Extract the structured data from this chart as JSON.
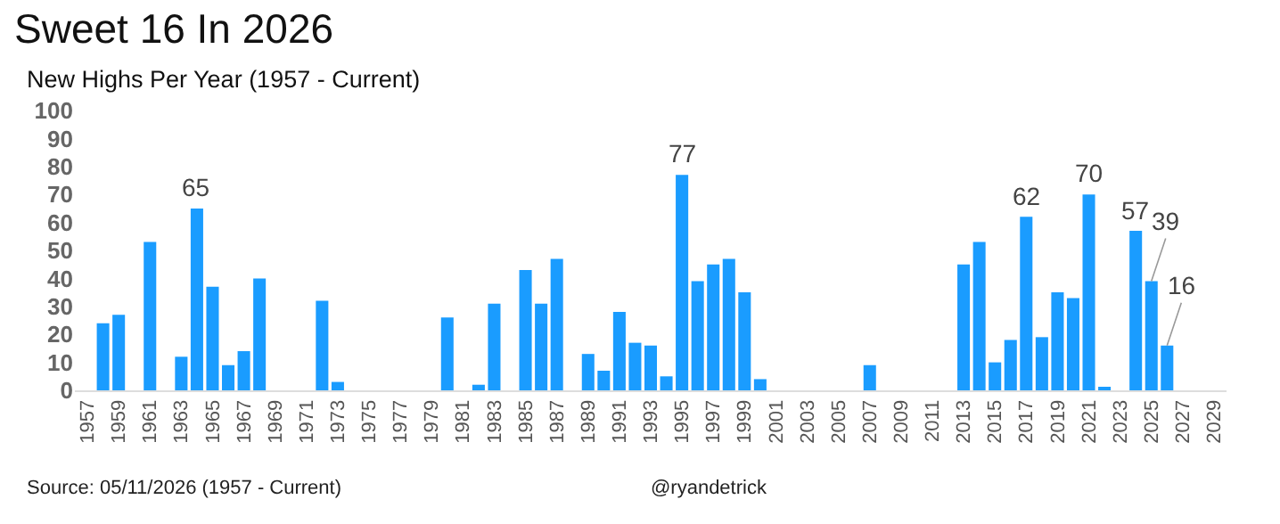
{
  "chart_data": {
    "type": "bar",
    "title": "Sweet 16 In 2026",
    "subtitle": "New Highs Per Year (1957 - Current)",
    "categories": [
      "1957",
      null,
      "1959",
      null,
      "1961",
      null,
      "1963",
      null,
      "1965",
      null,
      "1967",
      null,
      "1969",
      null,
      "1971",
      null,
      "1973",
      null,
      "1975",
      null,
      "1977",
      null,
      "1979",
      null,
      "1981",
      null,
      "1983",
      null,
      "1985",
      null,
      "1987",
      null,
      "1989",
      null,
      "1991",
      null,
      "1993",
      null,
      "1995",
      null,
      "1997",
      null,
      "1999",
      null,
      "2001",
      null,
      "2003",
      null,
      "2005",
      null,
      "2007",
      null,
      "2009",
      null,
      "2011",
      null,
      "2013",
      null,
      "2015",
      null,
      "2017",
      null,
      "2019",
      null,
      "2021",
      null,
      "2023",
      null,
      "2025",
      null,
      "2027",
      null,
      "2029"
    ],
    "values": [
      0,
      24,
      27,
      0,
      53,
      0,
      12,
      65,
      37,
      9,
      14,
      40,
      0,
      0,
      0,
      32,
      3,
      0,
      0,
      0,
      0,
      0,
      0,
      26,
      0,
      2,
      31,
      0,
      43,
      31,
      47,
      0,
      13,
      7,
      28,
      17,
      16,
      5,
      77,
      39,
      45,
      47,
      35,
      4,
      0,
      0,
      0,
      0,
      0,
      0,
      9,
      0,
      0,
      0,
      0,
      0,
      45,
      53,
      10,
      18,
      62,
      19,
      35,
      33,
      70,
      1,
      0,
      57,
      39,
      16,
      0,
      0,
      0
    ],
    "value_labels": [
      null,
      null,
      null,
      null,
      null,
      null,
      null,
      "65",
      null,
      null,
      null,
      null,
      null,
      null,
      null,
      null,
      null,
      null,
      null,
      null,
      null,
      null,
      null,
      null,
      null,
      null,
      null,
      null,
      null,
      null,
      null,
      null,
      null,
      null,
      null,
      null,
      null,
      null,
      "77",
      null,
      null,
      null,
      null,
      null,
      null,
      null,
      null,
      null,
      null,
      null,
      null,
      null,
      null,
      null,
      null,
      null,
      null,
      null,
      null,
      null,
      "62",
      null,
      null,
      null,
      "70",
      null,
      null,
      "57",
      "39",
      "16",
      null,
      null,
      null
    ],
    "color": "#1a9cff",
    "ylim": [
      0,
      100
    ],
    "yticks": [
      0,
      10,
      20,
      30,
      40,
      50,
      60,
      70,
      80,
      90,
      100
    ],
    "grid": false,
    "annotations": [
      "Source: 05/11/2026 (1957 - Current)",
      "@ryandetrick"
    ]
  }
}
